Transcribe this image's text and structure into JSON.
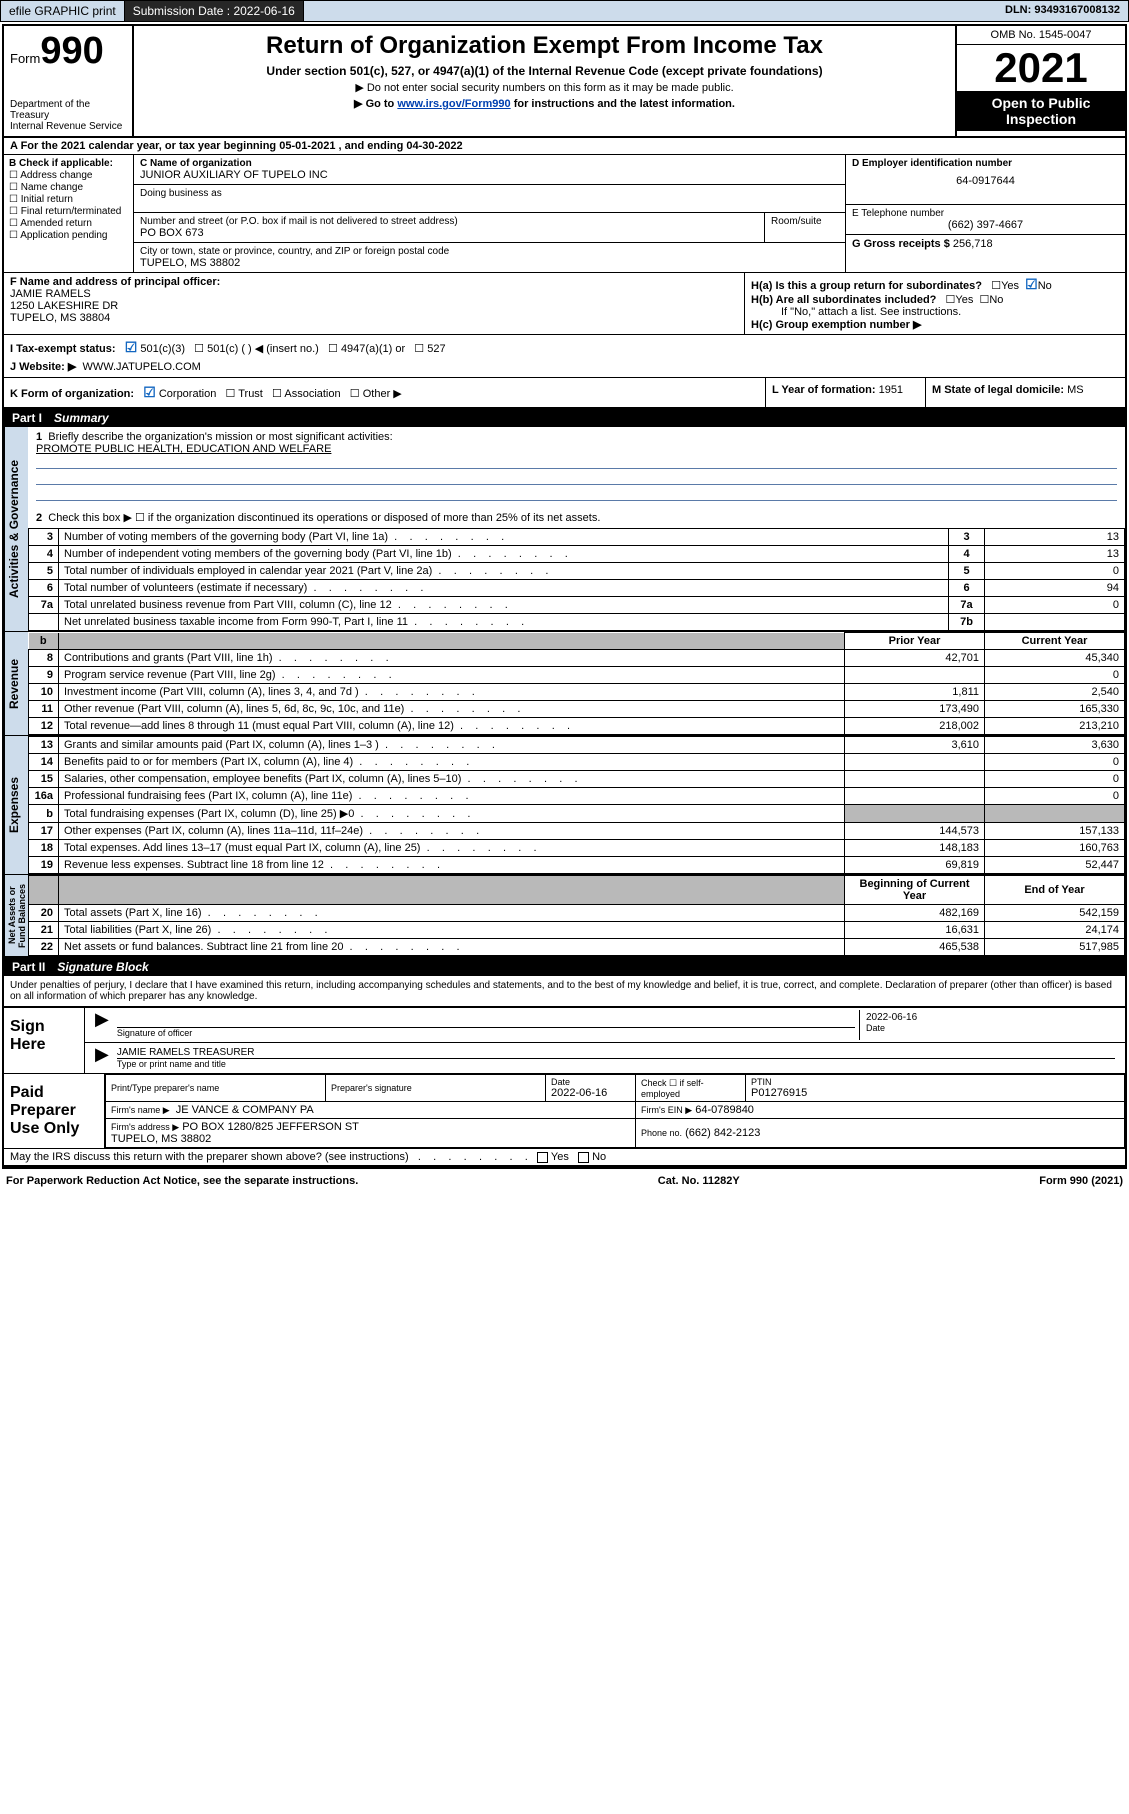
{
  "topbar": {
    "efile": "efile GRAPHIC print",
    "submission_label": "Submission Date :",
    "submission_date": "2022-06-16",
    "dln_label": "DLN:",
    "dln": "93493167008132"
  },
  "header": {
    "form_prefix": "Form",
    "form_number": "990",
    "dept": "Department of the Treasury\nInternal Revenue Service",
    "title": "Return of Organization Exempt From Income Tax",
    "subtitle": "Under section 501(c), 527, or 4947(a)(1) of the Internal Revenue Code (except private foundations)",
    "note1": "▶ Do not enter social security numbers on this form as it may be made public.",
    "note2_pre": "▶ Go to ",
    "note2_link": "www.irs.gov/Form990",
    "note2_post": " for instructions and the latest information.",
    "omb": "OMB No. 1545-0047",
    "year": "2021",
    "open": "Open to Public\nInspection"
  },
  "period": {
    "label_a": "A For the 2021 calendar year, or tax year beginning ",
    "begin": "05-01-2021",
    "mid": " , and ending ",
    "end": "04-30-2022"
  },
  "blockB": {
    "header": "B Check if applicable:",
    "items": [
      "Address change",
      "Name change",
      "Initial return",
      "Final return/terminated",
      "Amended return",
      "Application pending"
    ]
  },
  "blockC": {
    "name_label": "C Name of organization",
    "name": "JUNIOR AUXILIARY OF TUPELO INC",
    "dba_label": "Doing business as",
    "dba": "",
    "street_label": "Number and street (or P.O. box if mail is not delivered to street address)",
    "room_label": "Room/suite",
    "street": "PO BOX 673",
    "city_label": "City or town, state or province, country, and ZIP or foreign postal code",
    "city": "TUPELO, MS  38802"
  },
  "blockD": {
    "label": "D Employer identification number",
    "value": "64-0917644"
  },
  "blockE": {
    "label": "E Telephone number",
    "value": "(662) 397-4667"
  },
  "blockG": {
    "label": "G Gross receipts $",
    "value": "256,718"
  },
  "blockF": {
    "label": "F Name and address of principal officer:",
    "name": "JAMIE RAMELS",
    "addr1": "1250 LAKESHIRE DR",
    "addr2": "TUPELO, MS  38804"
  },
  "blockH": {
    "a_label": "H(a)  Is this a group return for subordinates?",
    "a_yes": "Yes",
    "a_no": "No",
    "b_label": "H(b)  Are all subordinates included?",
    "b_yes": "Yes",
    "b_no": "No",
    "note": "If \"No,\" attach a list. See instructions.",
    "c_label": "H(c)  Group exemption number ▶"
  },
  "lineI": {
    "label": "I   Tax-exempt status:",
    "opt1": "501(c)(3)",
    "opt2": "501(c) (   ) ◀ (insert no.)",
    "opt3": "4947(a)(1) or",
    "opt4": "527"
  },
  "lineJ": {
    "label": "J   Website: ▶",
    "value": "WWW.JATUPELO.COM"
  },
  "lineK": {
    "label": "K Form of organization:",
    "opts": [
      "Corporation",
      "Trust",
      "Association",
      "Other ▶"
    ]
  },
  "lineL": {
    "label": "L Year of formation:",
    "value": "1951"
  },
  "lineM": {
    "label": "M State of legal domicile:",
    "value": "MS"
  },
  "part1": {
    "num": "Part I",
    "title": "Summary"
  },
  "summary": {
    "l1_label": "Briefly describe the organization's mission or most significant activities:",
    "l1_text": "PROMOTE PUBLIC HEALTH, EDUCATION AND WELFARE",
    "l2": "Check this box ▶ ☐  if the organization discontinued its operations or disposed of more than 25% of its net assets.",
    "rows_single": [
      {
        "n": "3",
        "desc": "Number of voting members of the governing body (Part VI, line 1a)",
        "box": "3",
        "val": "13"
      },
      {
        "n": "4",
        "desc": "Number of independent voting members of the governing body (Part VI, line 1b)",
        "box": "4",
        "val": "13"
      },
      {
        "n": "5",
        "desc": "Total number of individuals employed in calendar year 2021 (Part V, line 2a)",
        "box": "5",
        "val": "0"
      },
      {
        "n": "6",
        "desc": "Total number of volunteers (estimate if necessary)",
        "box": "6",
        "val": "94"
      },
      {
        "n": "7a",
        "desc": "Total unrelated business revenue from Part VIII, column (C), line 12",
        "box": "7a",
        "val": "0"
      },
      {
        "n": "",
        "desc": "Net unrelated business taxable income from Form 990-T, Part I, line 11",
        "box": "7b",
        "val": ""
      }
    ],
    "col_prior": "Prior Year",
    "col_current": "Current Year",
    "revenue": [
      {
        "n": "8",
        "desc": "Contributions and grants (Part VIII, line 1h)",
        "p": "42,701",
        "c": "45,340"
      },
      {
        "n": "9",
        "desc": "Program service revenue (Part VIII, line 2g)",
        "p": "",
        "c": "0"
      },
      {
        "n": "10",
        "desc": "Investment income (Part VIII, column (A), lines 3, 4, and 7d )",
        "p": "1,811",
        "c": "2,540"
      },
      {
        "n": "11",
        "desc": "Other revenue (Part VIII, column (A), lines 5, 6d, 8c, 9c, 10c, and 11e)",
        "p": "173,490",
        "c": "165,330"
      },
      {
        "n": "12",
        "desc": "Total revenue—add lines 8 through 11 (must equal Part VIII, column (A), line 12)",
        "p": "218,002",
        "c": "213,210"
      }
    ],
    "expenses": [
      {
        "n": "13",
        "desc": "Grants and similar amounts paid (Part IX, column (A), lines 1–3 )",
        "p": "3,610",
        "c": "3,630"
      },
      {
        "n": "14",
        "desc": "Benefits paid to or for members (Part IX, column (A), line 4)",
        "p": "",
        "c": "0"
      },
      {
        "n": "15",
        "desc": "Salaries, other compensation, employee benefits (Part IX, column (A), lines 5–10)",
        "p": "",
        "c": "0"
      },
      {
        "n": "16a",
        "desc": "Professional fundraising fees (Part IX, column (A), line 11e)",
        "p": "",
        "c": "0"
      },
      {
        "n": "b",
        "desc": "Total fundraising expenses (Part IX, column (D), line 25) ▶0",
        "p": "__shade__",
        "c": "__shade__"
      },
      {
        "n": "17",
        "desc": "Other expenses (Part IX, column (A), lines 11a–11d, 11f–24e)",
        "p": "144,573",
        "c": "157,133"
      },
      {
        "n": "18",
        "desc": "Total expenses. Add lines 13–17 (must equal Part IX, column (A), line 25)",
        "p": "148,183",
        "c": "160,763"
      },
      {
        "n": "19",
        "desc": "Revenue less expenses. Subtract line 18 from line 12",
        "p": "69,819",
        "c": "52,447"
      }
    ],
    "col_begin": "Beginning of Current Year",
    "col_end": "End of Year",
    "netassets": [
      {
        "n": "20",
        "desc": "Total assets (Part X, line 16)",
        "p": "482,169",
        "c": "542,159"
      },
      {
        "n": "21",
        "desc": "Total liabilities (Part X, line 26)",
        "p": "16,631",
        "c": "24,174"
      },
      {
        "n": "22",
        "desc": "Net assets or fund balances. Subtract line 21 from line 20",
        "p": "465,538",
        "c": "517,985"
      }
    ]
  },
  "part2": {
    "num": "Part II",
    "title": "Signature Block"
  },
  "sig": {
    "declare": "Under penalties of perjury, I declare that I have examined this return, including accompanying schedules and statements, and to the best of my knowledge and belief, it is true, correct, and complete. Declaration of preparer (other than officer) is based on all information of which preparer has any knowledge.",
    "sign_here": "Sign Here",
    "sig_officer": "Signature of officer",
    "date": "Date",
    "date_val": "2022-06-16",
    "name_title": "JAMIE RAMELS TREASURER",
    "type_name": "Type or print name and title",
    "paid": "Paid Preparer Use Only",
    "pt_name": "Print/Type preparer's name",
    "pt_sig": "Preparer's signature",
    "pt_date_lab": "Date",
    "pt_date": "2022-06-16",
    "pt_check": "Check ☐ if self-employed",
    "ptin_lab": "PTIN",
    "ptin": "P01276915",
    "firm_name_lab": "Firm's name    ▶",
    "firm_name": "JE VANCE & COMPANY PA",
    "firm_ein_lab": "Firm's EIN ▶",
    "firm_ein": "64-0789840",
    "firm_addr_lab": "Firm's address ▶",
    "firm_addr": "PO BOX 1280/825 JEFFERSON ST\nTUPELO, MS  38802",
    "phone_lab": "Phone no.",
    "phone": "(662) 842-2123",
    "discuss": "May the IRS discuss this return with the preparer shown above? (see instructions)",
    "yes": "Yes",
    "no": "No"
  },
  "footer": {
    "left": "For Paperwork Reduction Act Notice, see the separate instructions.",
    "mid": "Cat. No. 11282Y",
    "right": "Form 990 (2021)"
  },
  "vtabs": {
    "ag": "Activities & Governance",
    "rev": "Revenue",
    "exp": "Expenses",
    "na": "Net Assets or\nFund Balances"
  }
}
